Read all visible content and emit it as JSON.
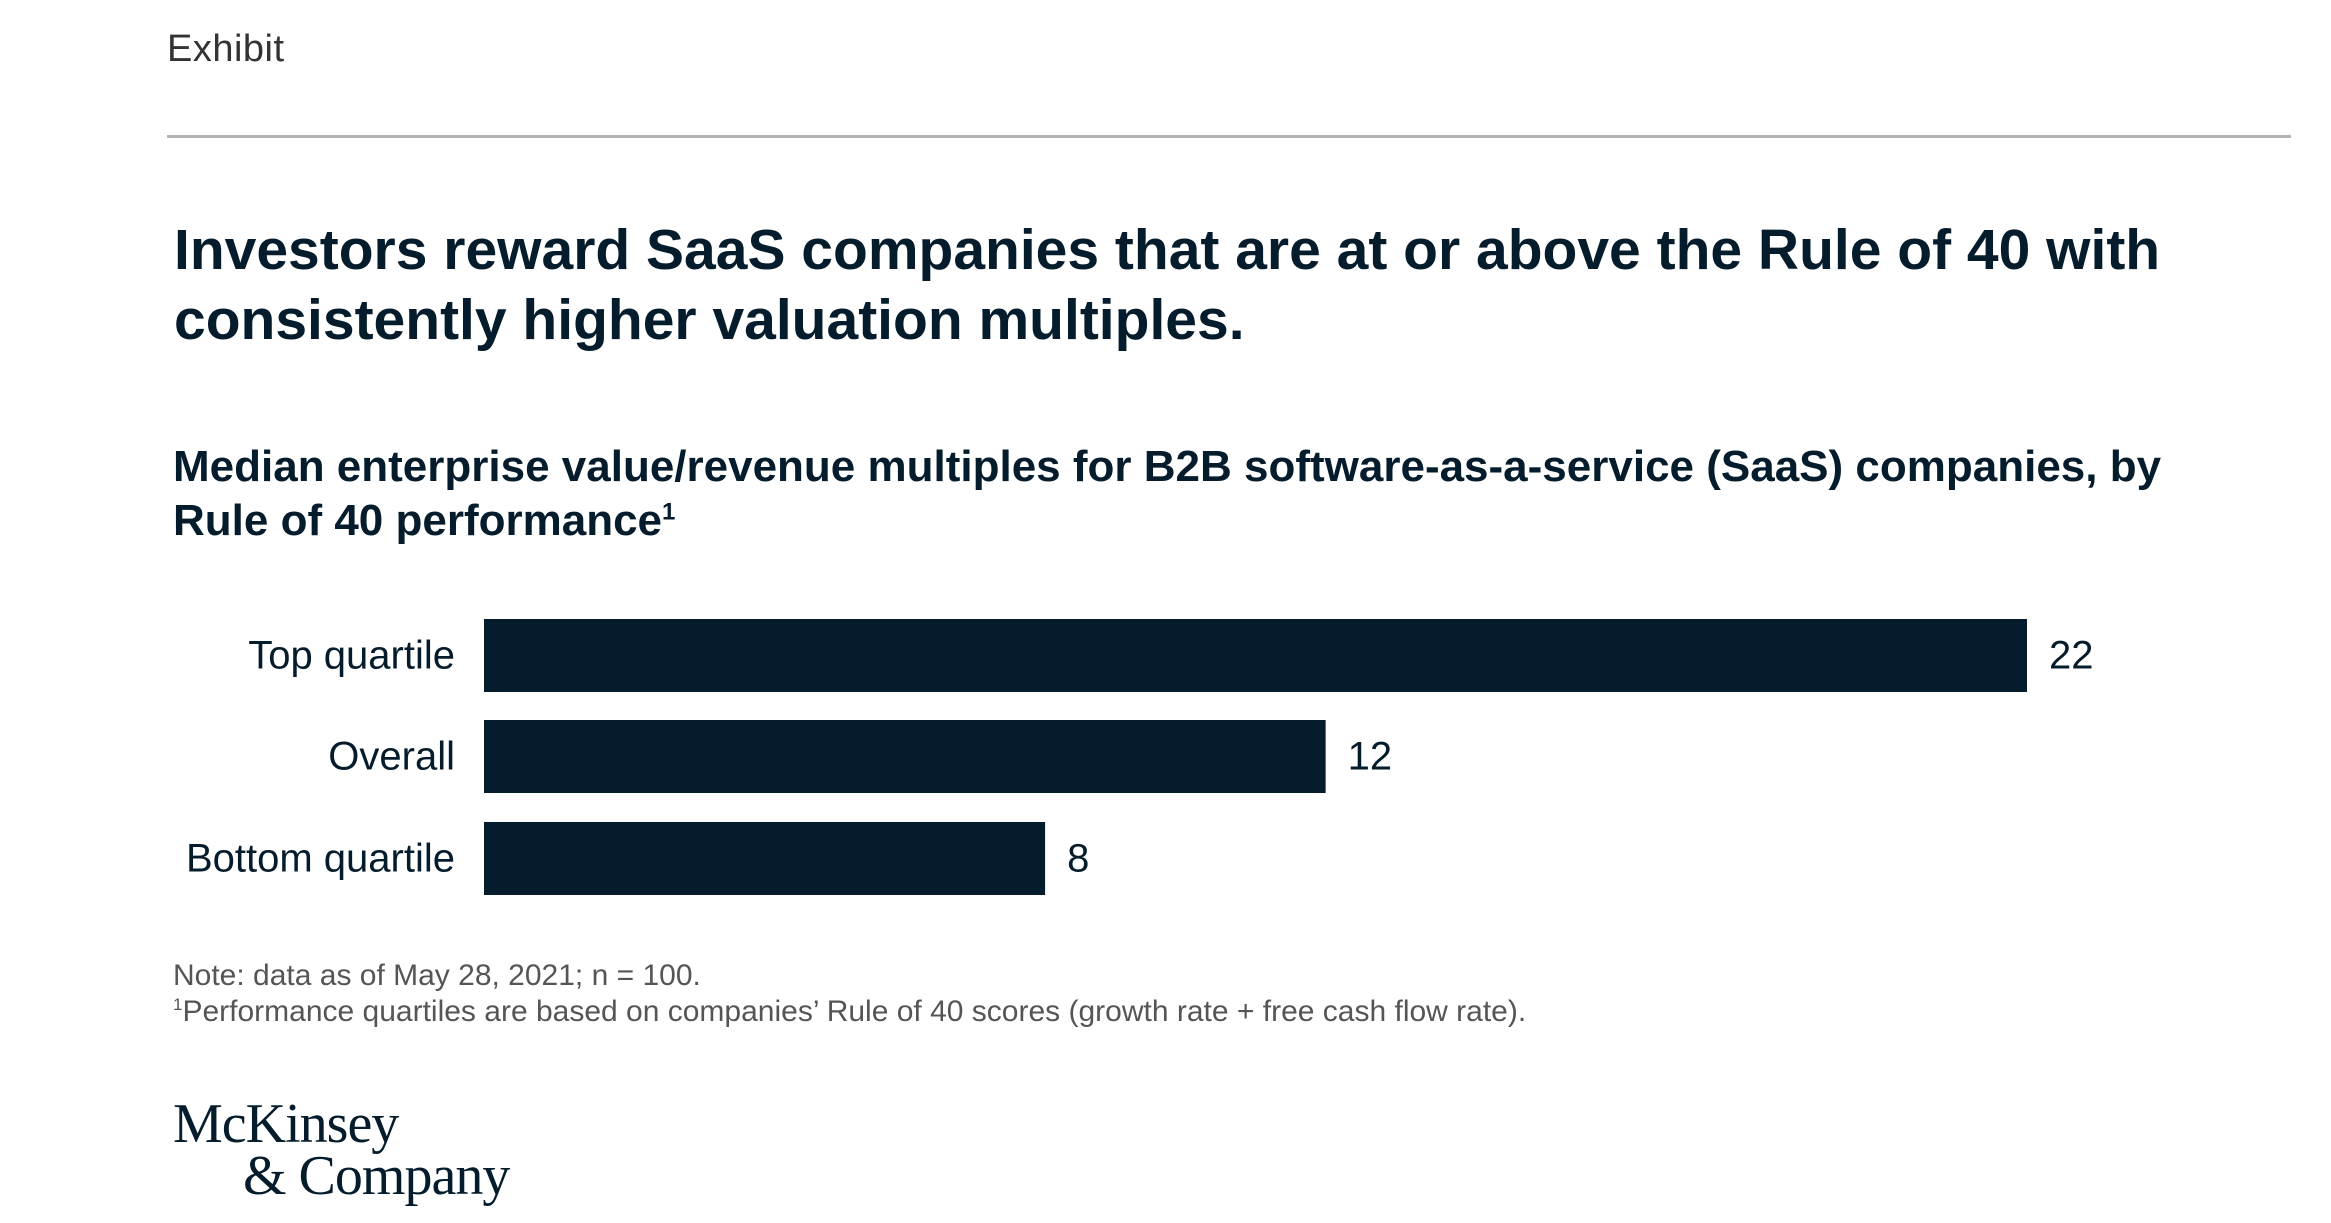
{
  "header": {
    "exhibit_label": "Exhibit"
  },
  "headline": "Investors reward SaaS companies that are at or above the Rule of 40 with consistently higher valuation multiples.",
  "chart_data": {
    "type": "bar",
    "orientation": "horizontal",
    "title": "Median enterprise value/revenue multiples for B2B software-as-a-service (SaaS) companies, by Rule of 40 performance",
    "title_footnote_marker": "1",
    "categories": [
      "Top quartile",
      "Overall",
      "Bottom quartile"
    ],
    "values": [
      22,
      12,
      8
    ],
    "value_labels": [
      "22",
      "12",
      "8"
    ],
    "xlabel": "",
    "ylabel": "",
    "xlim": [
      0,
      22
    ],
    "grid": false,
    "bar_color": "#051c2c"
  },
  "notes": {
    "note": "Note: data as of May 28, 2021; n = 100.",
    "footnote_marker": "1",
    "footnote": "Performance quartiles are based on companies’ Rule of 40 scores (growth rate + free cash flow rate)."
  },
  "logo": {
    "line1": "McKinsey",
    "line2": "& Company"
  },
  "colors": {
    "text_primary": "#051c2c",
    "text_secondary": "#555555",
    "rule": "#b3b3b3"
  }
}
